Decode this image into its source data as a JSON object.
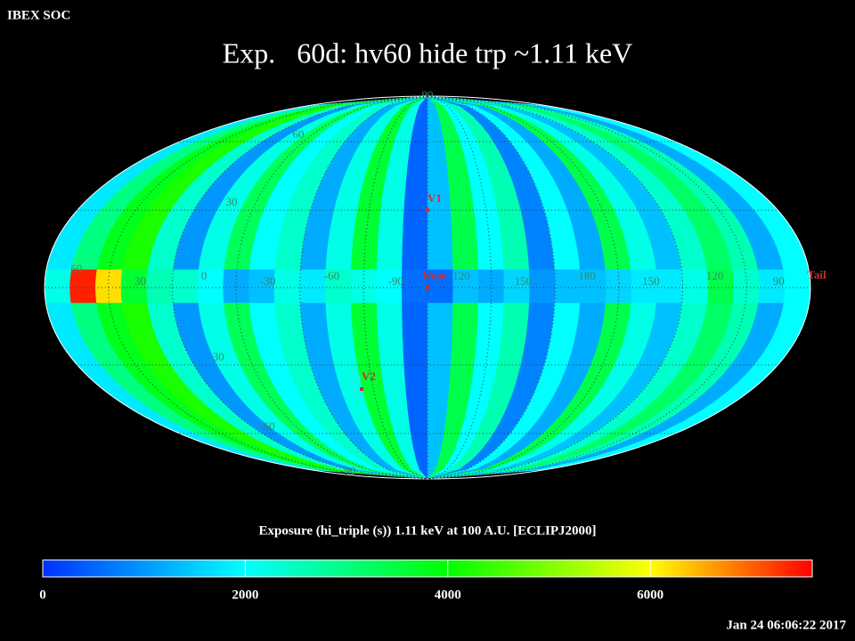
{
  "header": {
    "app": "IBEX SOC",
    "title": "Exp.   60d: hv60 hide trp ~1.11 keV"
  },
  "map": {
    "type": "mollweide",
    "exposure_strips": [
      1800,
      3000,
      3800,
      4200,
      2400,
      1000,
      2200,
      3300,
      2000,
      2400,
      1200,
      2200,
      3600,
      2200,
      500,
      1400,
      3400,
      2000,
      2600,
      800,
      2000,
      1200,
      3400,
      2200,
      1400,
      2400,
      3200,
      2600,
      1200,
      2000
    ],
    "equator_band": [
      2200,
      7400,
      6200,
      3600,
      2600,
      2400,
      2000,
      1200,
      1400,
      2200,
      1800,
      2400,
      2200,
      2000,
      600,
      600,
      1400,
      1200,
      1600,
      1000,
      1400,
      1400,
      1600,
      1800,
      1800,
      2200,
      3400,
      2400,
      1800,
      2000
    ],
    "lon_labels": [
      60,
      30,
      0,
      -30,
      -60,
      -90,
      -120,
      150,
      180,
      150,
      120,
      90
    ],
    "lat_labels": [
      90,
      60,
      30,
      -30,
      -60,
      -90
    ],
    "markers": [
      "V1",
      "Nose",
      "V2",
      "Tail"
    ],
    "marker_color": "#c83030"
  },
  "colorbar": {
    "label": "Exposure (hi_triple (s))  1.11 keV at 100 A.U. [ECLIPJ2000]",
    "lim": [
      0,
      7600
    ],
    "ticks": [
      0,
      2000,
      4000,
      6000
    ],
    "stops": [
      {
        "value": 0,
        "color": "#0030ff"
      },
      {
        "value": 2000,
        "color": "#00ffff"
      },
      {
        "value": 4000,
        "color": "#00ff00"
      },
      {
        "value": 6000,
        "color": "#ffff00"
      },
      {
        "value": 7600,
        "color": "#ff0000"
      }
    ]
  },
  "footer": {
    "timestamp": "Jan 24 06:06:22 2017"
  }
}
